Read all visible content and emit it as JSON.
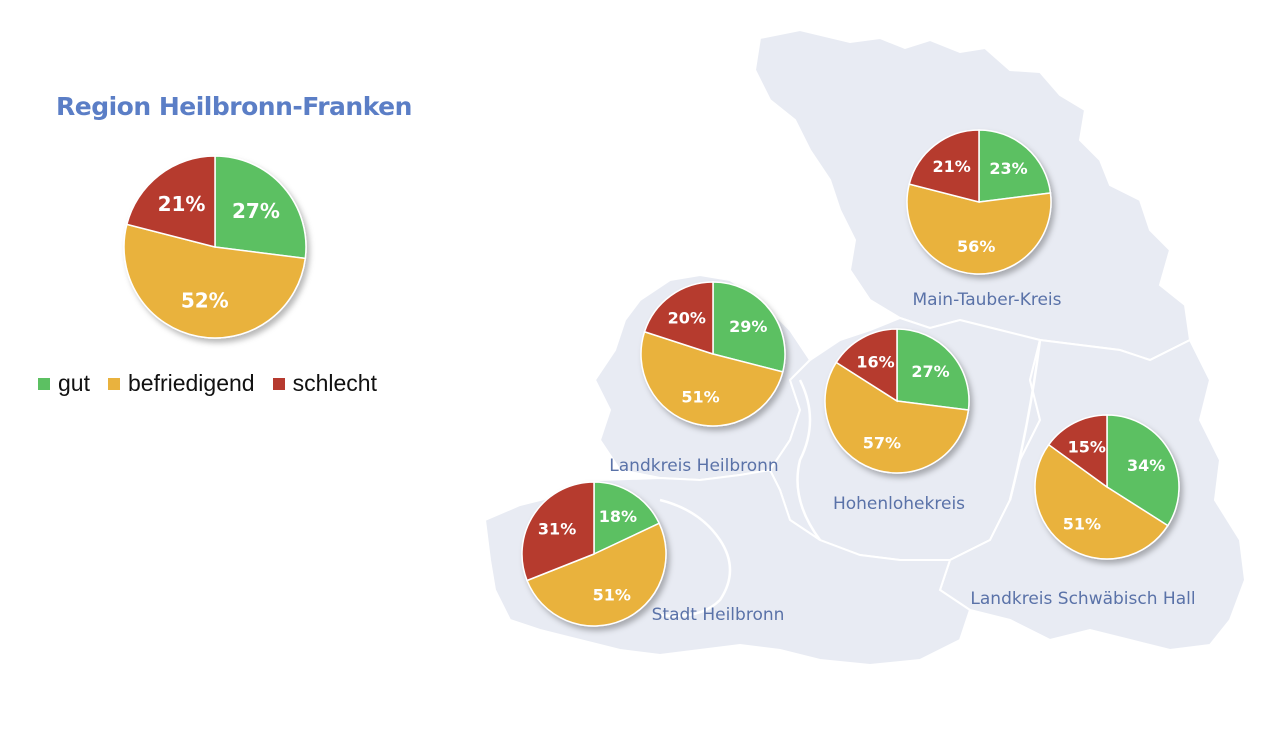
{
  "title": "Region Heilbronn-Franken",
  "legend": [
    {
      "label": "gut",
      "color": "#4caf50"
    },
    {
      "label": "befriedigend",
      "color": "#e8b03a"
    },
    {
      "label": "schlecht",
      "color": "#b83a2e"
    }
  ],
  "colors": {
    "gut": "#5cc062",
    "befriedigend": "#e9b23e",
    "schlecht": "#b63a2f",
    "map": "#e8ebf3",
    "title": "#5b7ec6",
    "district_label": "#5a72a8"
  },
  "chart_data": [
    {
      "type": "pie",
      "name": "Region Heilbronn-Franken",
      "categories": [
        "gut",
        "befriedigend",
        "schlecht"
      ],
      "values": [
        27,
        52,
        21
      ]
    },
    {
      "type": "pie",
      "name": "Main-Tauber-Kreis",
      "categories": [
        "gut",
        "befriedigend",
        "schlecht"
      ],
      "values": [
        23,
        56,
        21
      ]
    },
    {
      "type": "pie",
      "name": "Landkreis Heilbronn",
      "categories": [
        "gut",
        "befriedigend",
        "schlecht"
      ],
      "values": [
        29,
        51,
        20
      ]
    },
    {
      "type": "pie",
      "name": "Hohenlohekreis",
      "categories": [
        "gut",
        "befriedigend",
        "schlecht"
      ],
      "values": [
        27,
        57,
        16
      ]
    },
    {
      "type": "pie",
      "name": "Landkreis Schwäbisch Hall",
      "categories": [
        "gut",
        "befriedigend",
        "schlecht"
      ],
      "values": [
        34,
        51,
        15
      ]
    },
    {
      "type": "pie",
      "name": "Stadt Heilbronn",
      "categories": [
        "gut",
        "befriedigend",
        "schlecht"
      ],
      "values": [
        18,
        51,
        31
      ]
    }
  ]
}
